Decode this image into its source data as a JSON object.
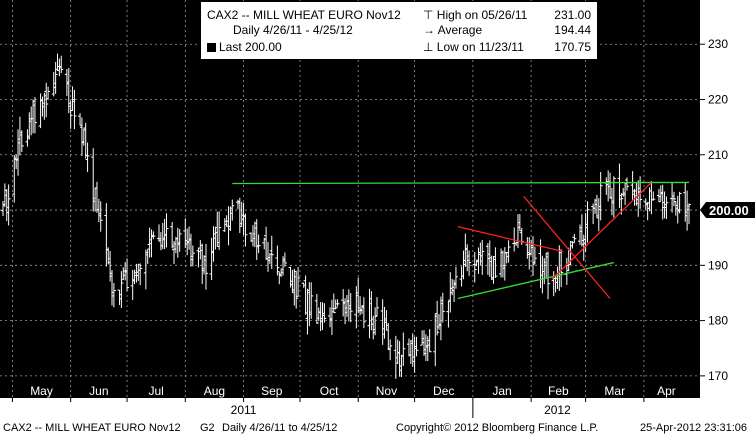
{
  "legend": {
    "security": "CAX2 -- MILL WHEAT EURO  Nov12",
    "range": "Daily 4/26/11 - 4/25/12",
    "last_label": "Last",
    "last_value": "200.00",
    "high_label": "High on 05/26/11",
    "high_value": "231.00",
    "avg_label": "Average",
    "avg_value": "194.44",
    "low_label": "Low on 11/23/11",
    "low_value": "170.75"
  },
  "footer": {
    "security": "CAX2 -- MILL WHEAT EURO  Nov12",
    "page": "G2",
    "range": "Daily  4/26/11 to 4/25/12",
    "copyright": "Copyright© 2012 Bloomberg Finance L.P.",
    "timestamp": "25-Apr-2012 23:31:06"
  },
  "chart_data": {
    "type": "bar",
    "y_ticks": [
      170,
      180,
      190,
      200,
      210,
      220,
      230
    ],
    "ylim": [
      166,
      238
    ],
    "x_month_labels": [
      "May",
      "Jun",
      "Jul",
      "Aug",
      "Sep",
      "Oct",
      "Nov",
      "Dec",
      "Jan",
      "Feb",
      "Mar",
      "Apr"
    ],
    "x_year_labels": [
      "2011",
      "2012"
    ],
    "last_price_label": "200.00",
    "last_price": 200.0,
    "x_start": "2011-04-26",
    "x_end": "2012-04-25",
    "monthly_closes": [
      {
        "date": "2011-04-26",
        "close": 200
      },
      {
        "date": "2011-05-05",
        "close": 212
      },
      {
        "date": "2011-05-26",
        "close": 226
      },
      {
        "date": "2011-06-10",
        "close": 210
      },
      {
        "date": "2011-06-24",
        "close": 184
      },
      {
        "date": "2011-07-12",
        "close": 194
      },
      {
        "date": "2011-07-28",
        "close": 195
      },
      {
        "date": "2011-08-12",
        "close": 190
      },
      {
        "date": "2011-08-26",
        "close": 200
      },
      {
        "date": "2011-09-12",
        "close": 194
      },
      {
        "date": "2011-09-26",
        "close": 187
      },
      {
        "date": "2011-10-12",
        "close": 180
      },
      {
        "date": "2011-10-26",
        "close": 184
      },
      {
        "date": "2011-11-12",
        "close": 180
      },
      {
        "date": "2011-11-23",
        "close": 172
      },
      {
        "date": "2011-12-10",
        "close": 177
      },
      {
        "date": "2011-12-28",
        "close": 192
      },
      {
        "date": "2012-01-12",
        "close": 190
      },
      {
        "date": "2012-01-26",
        "close": 195
      },
      {
        "date": "2012-02-10",
        "close": 189
      },
      {
        "date": "2012-02-24",
        "close": 193
      },
      {
        "date": "2012-03-10",
        "close": 203
      },
      {
        "date": "2012-03-26",
        "close": 204
      },
      {
        "date": "2012-04-12",
        "close": 202
      },
      {
        "date": "2012-04-25",
        "close": 200
      }
    ],
    "trendlines": [
      {
        "name": "resistance",
        "color": "#33dd33",
        "from": {
          "date": "2011-08-26",
          "y": 204.8
        },
        "to": {
          "date": "2012-04-25",
          "y": 205.0
        }
      },
      {
        "name": "triangle-upper",
        "color": "#ff2222",
        "from": {
          "date": "2011-12-24",
          "y": 197.0
        },
        "to": {
          "date": "2012-02-18",
          "y": 192.5
        }
      },
      {
        "name": "triangle-lower",
        "color": "#33dd33",
        "from": {
          "date": "2011-12-24",
          "y": 184.0
        },
        "to": {
          "date": "2012-03-16",
          "y": 190.5
        }
      },
      {
        "name": "down-diagonal",
        "color": "#ff2222",
        "from": {
          "date": "2012-01-28",
          "y": 202.5
        },
        "to": {
          "date": "2012-03-14",
          "y": 184.0
        }
      },
      {
        "name": "up-diagonal",
        "color": "#ff2222",
        "from": {
          "date": "2012-02-12",
          "y": 187.5
        },
        "to": {
          "date": "2012-04-05",
          "y": 205.0
        }
      }
    ]
  },
  "colors": {
    "background": "#000000",
    "bars": "#ffffff",
    "green_line": "#33dd33",
    "red_line": "#ff2222"
  }
}
